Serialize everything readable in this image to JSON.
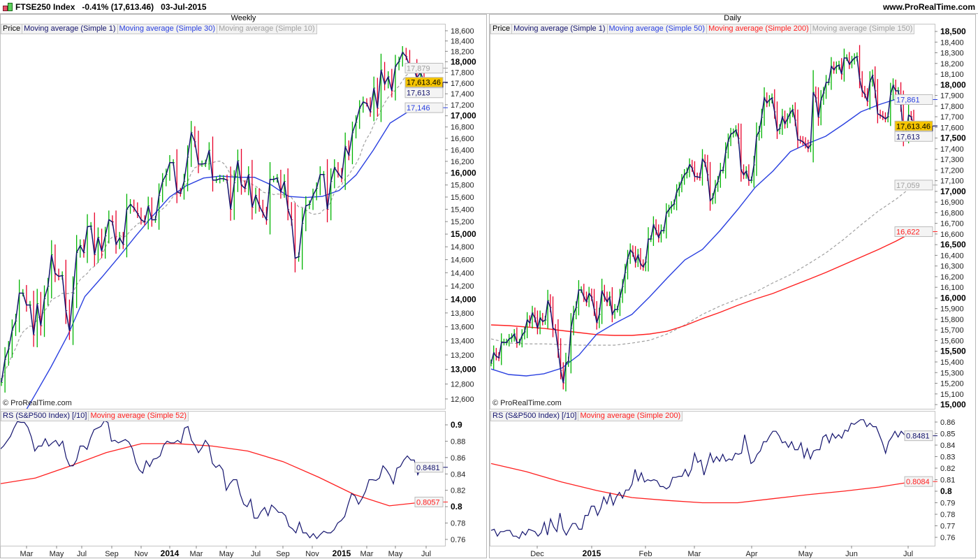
{
  "header": {
    "title": "FTSE250 Index",
    "change": "-0.41% (17,613.46)",
    "date": "03-Jul-2015",
    "site": "www.ProRealTime.com"
  },
  "copyright": "© ProRealTime.com",
  "colors": {
    "up": "#00b400",
    "down": "#e8002a",
    "close_line": "#14146e",
    "ma_blue": "#2a40e0",
    "ma_gray": "#a0a0a0",
    "ma_red": "#ff2020",
    "last_price_bg": "#f5c400"
  },
  "chart_data": [
    {
      "type": "line",
      "title": "Weekly",
      "scale": "log",
      "legend": [
        {
          "label": "Price",
          "color": "#000000"
        },
        {
          "label": "Moving average (Simple 1)",
          "color": "#14146e"
        },
        {
          "label": "Moving average (Simple 30)",
          "color": "#2a40e0"
        },
        {
          "label": "Moving average (Simple 10)",
          "color": "#a0a0a0"
        }
      ],
      "ylim": [
        12500,
        18700
      ],
      "y_ticks": [
        "18,600",
        "18,400",
        "18,200",
        "18,000",
        "17,800",
        "17,600",
        "17,400",
        "17,200",
        "17,000",
        "16,800",
        "16,600",
        "16,400",
        "16,200",
        "16,000",
        "15,800",
        "15,600",
        "15,400",
        "15,200",
        "15,000",
        "14,800",
        "14,600",
        "14,400",
        "14,200",
        "14,000",
        "13,800",
        "13,600",
        "13,400",
        "13,200",
        "13,000",
        "12,800",
        "12,600"
      ],
      "x_ticks": [
        "Mar",
        "May",
        "Jul",
        "Sep",
        "Nov",
        "2014",
        "Mar",
        "May",
        "Jul",
        "Sep",
        "Nov",
        "2015",
        "Mar",
        "May",
        "Jul"
      ],
      "value_labels": [
        {
          "text": "17,879",
          "color": "#a0a0a0",
          "bg": "#f4f4f4"
        },
        {
          "text": "17,613.46",
          "color": "#000000",
          "bg": "#f5c400"
        },
        {
          "text": "17,613",
          "color": "#14146e",
          "bg": "#f4f4f4"
        },
        {
          "text": "17,146",
          "color": "#2a40e0",
          "bg": "#f4f4f4"
        }
      ],
      "closes": [
        12822,
        13139,
        13285,
        13552,
        13683,
        14092,
        14092,
        13916,
        13916,
        13483,
        13937,
        13613,
        14009,
        14196,
        14676,
        14387,
        14344,
        14356,
        13834,
        13542,
        14092,
        14710,
        14819,
        14710,
        15117,
        15128,
        14676,
        14950,
        14731,
        14972,
        15229,
        15195,
        14840,
        14940,
        14840,
        15398,
        15478,
        15421,
        15331,
        15229,
        15195,
        15455,
        15229,
        15229,
        15627,
        15859,
        15975,
        16177,
        16177,
        15685,
        15661,
        15859,
        16272,
        16698,
        16539,
        16154,
        16154,
        16165,
        16392,
        15882,
        15882,
        15905,
        15905,
        15882,
        15398,
        15836,
        16212,
        15801,
        15743,
        15975,
        15432,
        15627,
        15455,
        15341,
        15229,
        15894,
        15894,
        15916,
        15685,
        15859,
        15398,
        15229,
        14623,
        14644,
        15173,
        15455,
        15478,
        15627,
        15743,
        15975,
        15975,
        15398,
        15859,
        16094,
        15999,
        15916,
        16453,
        16308,
        16698,
        16884,
        17135,
        17249,
        17223,
        17072,
        17507,
        17135,
        17845,
        17584,
        17714,
        17454,
        17912,
        18005,
        18179,
        18100,
        17912,
        17912,
        17688,
        17806,
        17613.46
      ],
      "ma30": [
        12000,
        12250,
        12630,
        13030,
        13480,
        14040,
        14330,
        14640,
        14970,
        15290,
        15600,
        15790,
        15916,
        15950,
        15930,
        15930,
        15800,
        15610,
        15592,
        15610,
        15710,
        15970,
        16390,
        16870,
        17060,
        17146
      ]
    },
    {
      "type": "line",
      "legend": [
        {
          "label": "RS (S&P500 Index) [/10]",
          "color": "#14146e"
        },
        {
          "label": "Moving average (Simple 52)",
          "color": "#ff2020"
        }
      ],
      "ylim": [
        0.755,
        0.91
      ],
      "y_ticks": [
        "0.9",
        "0.88",
        "0.86",
        "0.84",
        "0.82",
        "0.8",
        "0.78",
        "0.76"
      ],
      "value_labels": [
        {
          "text": "0.8481",
          "color": "#14146e",
          "bg": "#f4f4f4"
        },
        {
          "text": "0.8057",
          "color": "#ff2020",
          "bg": "#f4f4f4"
        }
      ],
      "rs": [
        0.87,
        0.874,
        0.88,
        0.886,
        0.896,
        0.904,
        0.903,
        0.903,
        0.897,
        0.885,
        0.868,
        0.874,
        0.874,
        0.883,
        0.874,
        0.878,
        0.881,
        0.874,
        0.88,
        0.86,
        0.85,
        0.85,
        0.857,
        0.874,
        0.874,
        0.87,
        0.884,
        0.894,
        0.896,
        0.898,
        0.905,
        0.903,
        0.88,
        0.881,
        0.878,
        0.88,
        0.882,
        0.879,
        0.871,
        0.854,
        0.845,
        0.841,
        0.856,
        0.849,
        0.858,
        0.859,
        0.862,
        0.875,
        0.88,
        0.878,
        0.878,
        0.881,
        0.878,
        0.896,
        0.898,
        0.881,
        0.875,
        0.866,
        0.872,
        0.881,
        0.875,
        0.853,
        0.848,
        0.851,
        0.845,
        0.82,
        0.828,
        0.833,
        0.833,
        0.815,
        0.803,
        0.8,
        0.809,
        0.786,
        0.786,
        0.794,
        0.799,
        0.789,
        0.802,
        0.798,
        0.793,
        0.793,
        0.789,
        0.776,
        0.773,
        0.768,
        0.781,
        0.768,
        0.768,
        0.762,
        0.767,
        0.761,
        0.766,
        0.77,
        0.768,
        0.768,
        0.772,
        0.78,
        0.783,
        0.788,
        0.803,
        0.816,
        0.813,
        0.803,
        0.81,
        0.819,
        0.833,
        0.833,
        0.832,
        0.835,
        0.85,
        0.845,
        0.838,
        0.828,
        0.847,
        0.849,
        0.857,
        0.862,
        0.857,
        0.857,
        0.839,
        0.848,
        0.8481
      ],
      "ma52": [
        0.828,
        0.835,
        0.85,
        0.866,
        0.877,
        0.877,
        0.874,
        0.868,
        0.855,
        0.836,
        0.815,
        0.801,
        0.8057
      ]
    },
    {
      "type": "line",
      "title": "Daily",
      "scale": "linear",
      "legend": [
        {
          "label": "Price",
          "color": "#000000"
        },
        {
          "label": "Moving average (Simple 1)",
          "color": "#14146e"
        },
        {
          "label": "Moving average (Simple 50)",
          "color": "#2a40e0"
        },
        {
          "label": "Moving average (Simple 200)",
          "color": "#ff2020"
        },
        {
          "label": "Moving average (Simple 150)",
          "color": "#a0a0a0"
        }
      ],
      "ylim": [
        15000,
        18500
      ],
      "y_ticks": [
        "18,500",
        "18,400",
        "18,300",
        "18,200",
        "18,100",
        "18,000",
        "17,900",
        "17,800",
        "17,700",
        "17,600",
        "17,500",
        "17,400",
        "17,300",
        "17,200",
        "17,100",
        "17,000",
        "16,900",
        "16,800",
        "16,700",
        "16,600",
        "16,500",
        "16,400",
        "16,300",
        "16,200",
        "16,100",
        "16,000",
        "15,900",
        "15,800",
        "15,700",
        "15,600",
        "15,500",
        "15,400",
        "15,300",
        "15,200",
        "15,100",
        "15,000"
      ],
      "x_ticks": [
        "Dec",
        "2015",
        "Feb",
        "Mar",
        "Apr",
        "May",
        "Jun",
        "Jul"
      ],
      "value_labels": [
        {
          "text": "17,861",
          "color": "#2a40e0",
          "bg": "#f4f4f4"
        },
        {
          "text": "17,613.46",
          "color": "#000000",
          "bg": "#f5c400"
        },
        {
          "text": "17,613",
          "color": "#14146e",
          "bg": "#f4f4f4"
        },
        {
          "text": "17,059",
          "color": "#a0a0a0",
          "bg": "#f4f4f4"
        },
        {
          "text": "16,622",
          "color": "#ff2020",
          "bg": "#f4f4f4"
        }
      ],
      "closes": [
        15387,
        15485,
        15452,
        15439,
        15583,
        15583,
        15583,
        15616,
        15629,
        15662,
        15583,
        15583,
        15649,
        15682,
        15793,
        15767,
        15859,
        15813,
        15715,
        15813,
        15780,
        15793,
        15977,
        15911,
        15715,
        15701,
        15518,
        15321,
        15203,
        15387,
        15407,
        15715,
        15846,
        15911,
        16075,
        16075,
        16009,
        15964,
        16042,
        16009,
        15892,
        15767,
        15846,
        16068,
        16009,
        15964,
        16009,
        15846,
        15892,
        15892,
        16009,
        16108,
        16239,
        16370,
        16449,
        16422,
        16337,
        16403,
        16318,
        16291,
        16337,
        16553,
        16553,
        16685,
        16632,
        16567,
        16632,
        16632,
        16796,
        16829,
        16861,
        16881,
        16993,
        17038,
        17104,
        17156,
        17180,
        17250,
        17220,
        17140,
        17137,
        17130,
        17301,
        17268,
        17156,
        16914,
        16940,
        17038,
        17091,
        17196,
        17196,
        17366,
        17471,
        17537,
        17550,
        17576,
        17497,
        17202,
        17156,
        17189,
        17104,
        17104,
        17248,
        17517,
        17563,
        17694,
        17877,
        17831,
        17858,
        17877,
        17746,
        17569,
        17589,
        17700,
        17635,
        17681,
        17733,
        17766,
        17668,
        17484,
        17478,
        17464,
        17438,
        17405,
        17438,
        17930,
        17877,
        17694,
        17858,
        17923,
        18022,
        18022,
        18172,
        18140,
        18172,
        18185,
        18100,
        18251,
        18251,
        18192,
        18225,
        18251,
        18264,
        18054,
        17943,
        17910,
        17845,
        18028,
        18087,
        17943,
        17727,
        17714,
        17700,
        17681,
        17700,
        17910,
        17995,
        17943,
        17943,
        17812,
        17530,
        17530,
        17714,
        17700,
        17613.46
      ],
      "ma50": [
        15334,
        15282,
        15269,
        15289,
        15341,
        15466,
        15662,
        15760,
        15846,
        16010,
        16187,
        16357,
        16455,
        16632,
        16829,
        17038,
        17189,
        17373,
        17451,
        17517,
        17628,
        17746,
        17812,
        17865,
        17861
      ],
      "ma200": [
        15747,
        15741,
        15728,
        15715,
        15695,
        15675,
        15656,
        15649,
        15649,
        15662,
        15688,
        15741,
        15806,
        15865,
        15931,
        15990,
        16042,
        16108,
        16173,
        16239,
        16311,
        16383,
        16455,
        16534,
        16622
      ],
      "ma150": [
        15616,
        15577,
        15570,
        15570,
        15564,
        15557,
        15557,
        15557,
        15577,
        15603,
        15662,
        15747,
        15846,
        15924,
        15990,
        16055,
        16141,
        16219,
        16318,
        16422,
        16547,
        16685,
        16816,
        16927,
        17059
      ]
    },
    {
      "type": "line",
      "legend": [
        {
          "label": "RS (S&P500 Index) [/10]",
          "color": "#14146e"
        },
        {
          "label": "Moving average (Simple 200)",
          "color": "#ff2020"
        }
      ],
      "ylim": [
        0.755,
        0.867
      ],
      "y_ticks": [
        "0.86",
        "0.85",
        "0.84",
        "0.83",
        "0.82",
        "0.81",
        "0.8",
        "0.79",
        "0.78",
        "0.77",
        "0.76"
      ],
      "value_labels": [
        {
          "text": "0.8481",
          "color": "#14146e",
          "bg": "#f4f4f4"
        },
        {
          "text": "0.8084",
          "color": "#ff2020",
          "bg": "#f4f4f4"
        }
      ],
      "rs": [
        0.766,
        0.767,
        0.761,
        0.765,
        0.765,
        0.766,
        0.766,
        0.761,
        0.761,
        0.759,
        0.765,
        0.762,
        0.767,
        0.766,
        0.765,
        0.761,
        0.764,
        0.773,
        0.762,
        0.776,
        0.769,
        0.765,
        0.781,
        0.767,
        0.762,
        0.767,
        0.772,
        0.772,
        0.767,
        0.767,
        0.779,
        0.779,
        0.787,
        0.787,
        0.779,
        0.785,
        0.795,
        0.789,
        0.798,
        0.788,
        0.795,
        0.799,
        0.794,
        0.801,
        0.801,
        0.806,
        0.819,
        0.809,
        0.816,
        0.808,
        0.81,
        0.809,
        0.81,
        0.809,
        0.804,
        0.804,
        0.802,
        0.804,
        0.812,
        0.812,
        0.813,
        0.813,
        0.819,
        0.813,
        0.819,
        0.833,
        0.825,
        0.827,
        0.814,
        0.823,
        0.833,
        0.825,
        0.83,
        0.826,
        0.832,
        0.826,
        0.828,
        0.827,
        0.833,
        0.832,
        0.833,
        0.849,
        0.836,
        0.824,
        0.826,
        0.832,
        0.835,
        0.843,
        0.843,
        0.848,
        0.852,
        0.852,
        0.848,
        0.842,
        0.843,
        0.838,
        0.843,
        0.836,
        0.836,
        0.842,
        0.829,
        0.837,
        0.828,
        0.835,
        0.836,
        0.836,
        0.847,
        0.849,
        0.842,
        0.85,
        0.846,
        0.849,
        0.846,
        0.853,
        0.852,
        0.859,
        0.858,
        0.86,
        0.862,
        0.862,
        0.856,
        0.859,
        0.856,
        0.856,
        0.849,
        0.842,
        0.833,
        0.843,
        0.847,
        0.852,
        0.847,
        0.852,
        0.849,
        0.852,
        0.852,
        0.8481
      ],
      "ma200": [
        0.824,
        0.817,
        0.808,
        0.8006,
        0.7945,
        0.792,
        0.79,
        0.79,
        0.7935,
        0.797,
        0.8,
        0.8036,
        0.8084
      ]
    }
  ]
}
